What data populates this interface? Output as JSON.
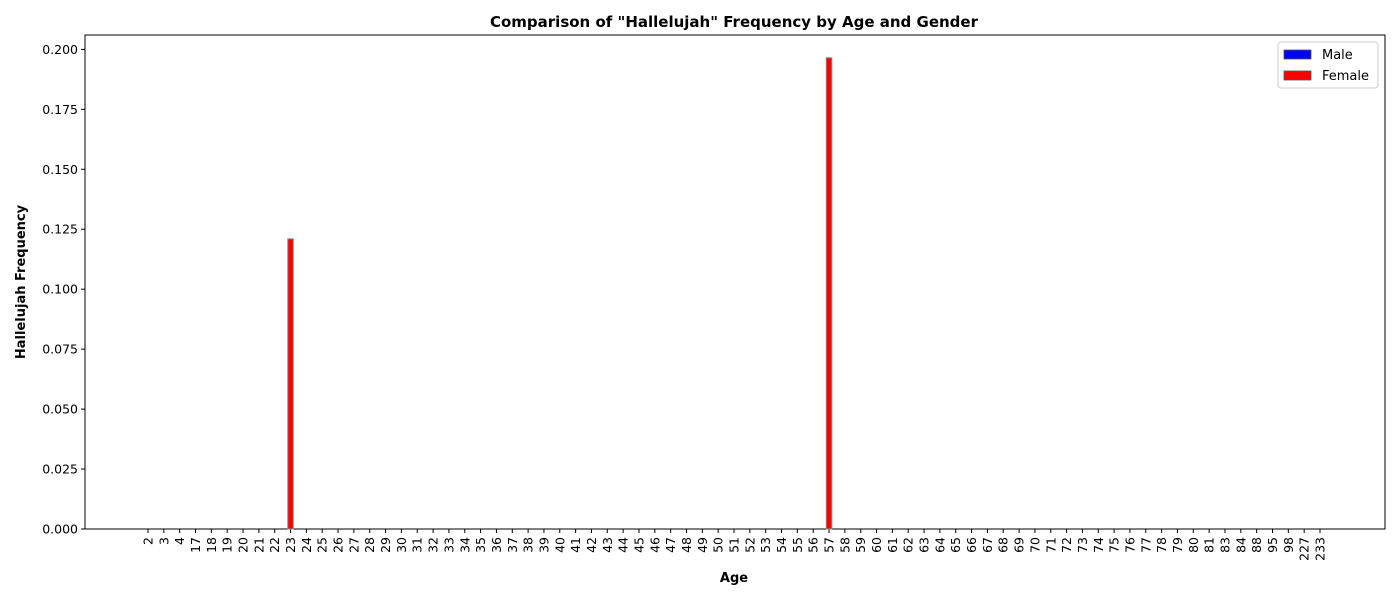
{
  "chart_data": {
    "type": "bar",
    "title": "Comparison of \"Hallelujah\" Frequency by Age and Gender",
    "xlabel": "Age",
    "ylabel": "Hallelujah Frequency",
    "ylim": [
      0,
      0.206
    ],
    "yticks": [
      "0.000",
      "0.025",
      "0.050",
      "0.075",
      "0.100",
      "0.125",
      "0.150",
      "0.175",
      "0.200"
    ],
    "categories": [
      "2",
      "3",
      "4",
      "17",
      "18",
      "19",
      "20",
      "21",
      "22",
      "23",
      "24",
      "25",
      "26",
      "27",
      "28",
      "29",
      "30",
      "31",
      "32",
      "33",
      "34",
      "35",
      "36",
      "37",
      "38",
      "39",
      "40",
      "41",
      "42",
      "43",
      "44",
      "45",
      "46",
      "47",
      "48",
      "49",
      "50",
      "51",
      "52",
      "53",
      "54",
      "55",
      "56",
      "57",
      "58",
      "59",
      "60",
      "61",
      "62",
      "63",
      "64",
      "65",
      "66",
      "67",
      "68",
      "69",
      "70",
      "71",
      "72",
      "73",
      "74",
      "75",
      "76",
      "77",
      "78",
      "79",
      "80",
      "81",
      "83",
      "84",
      "88",
      "95",
      "98",
      "227",
      "233"
    ],
    "series": [
      {
        "name": "Male",
        "color": "#0000ff",
        "values": [
          0,
          0,
          0,
          0,
          0,
          0,
          0,
          0,
          0,
          0,
          0,
          0,
          0,
          0,
          0,
          0,
          0,
          0,
          0,
          0,
          0,
          0,
          0,
          0,
          0,
          0,
          0,
          0,
          0,
          0,
          0,
          0,
          0,
          0,
          0,
          0,
          0,
          0,
          0,
          0,
          0,
          0,
          0,
          0,
          0,
          0,
          0,
          0,
          0,
          0,
          0,
          0,
          0,
          0,
          0,
          0,
          0,
          0,
          0,
          0,
          0,
          0,
          0,
          0,
          0,
          0,
          0,
          0,
          0,
          0,
          0,
          0,
          0,
          0,
          0
        ]
      },
      {
        "name": "Female",
        "color": "#ff0000",
        "values": [
          0,
          0,
          0,
          0,
          0,
          0,
          0,
          0,
          0,
          0.121,
          0,
          0,
          0,
          0,
          0,
          0,
          0,
          0,
          0,
          0,
          0,
          0,
          0,
          0,
          0,
          0,
          0,
          0,
          0,
          0,
          0,
          0,
          0,
          0,
          0,
          0,
          0,
          0,
          0,
          0,
          0,
          0,
          0,
          0.1965,
          0,
          0,
          0,
          0,
          0,
          0,
          0,
          0,
          0,
          0,
          0,
          0,
          0,
          0,
          0,
          0,
          0,
          0,
          0,
          0,
          0,
          0,
          0,
          0,
          0,
          0,
          0,
          0,
          0,
          0,
          0
        ]
      }
    ],
    "legend_position": "top-right",
    "grid": false
  }
}
